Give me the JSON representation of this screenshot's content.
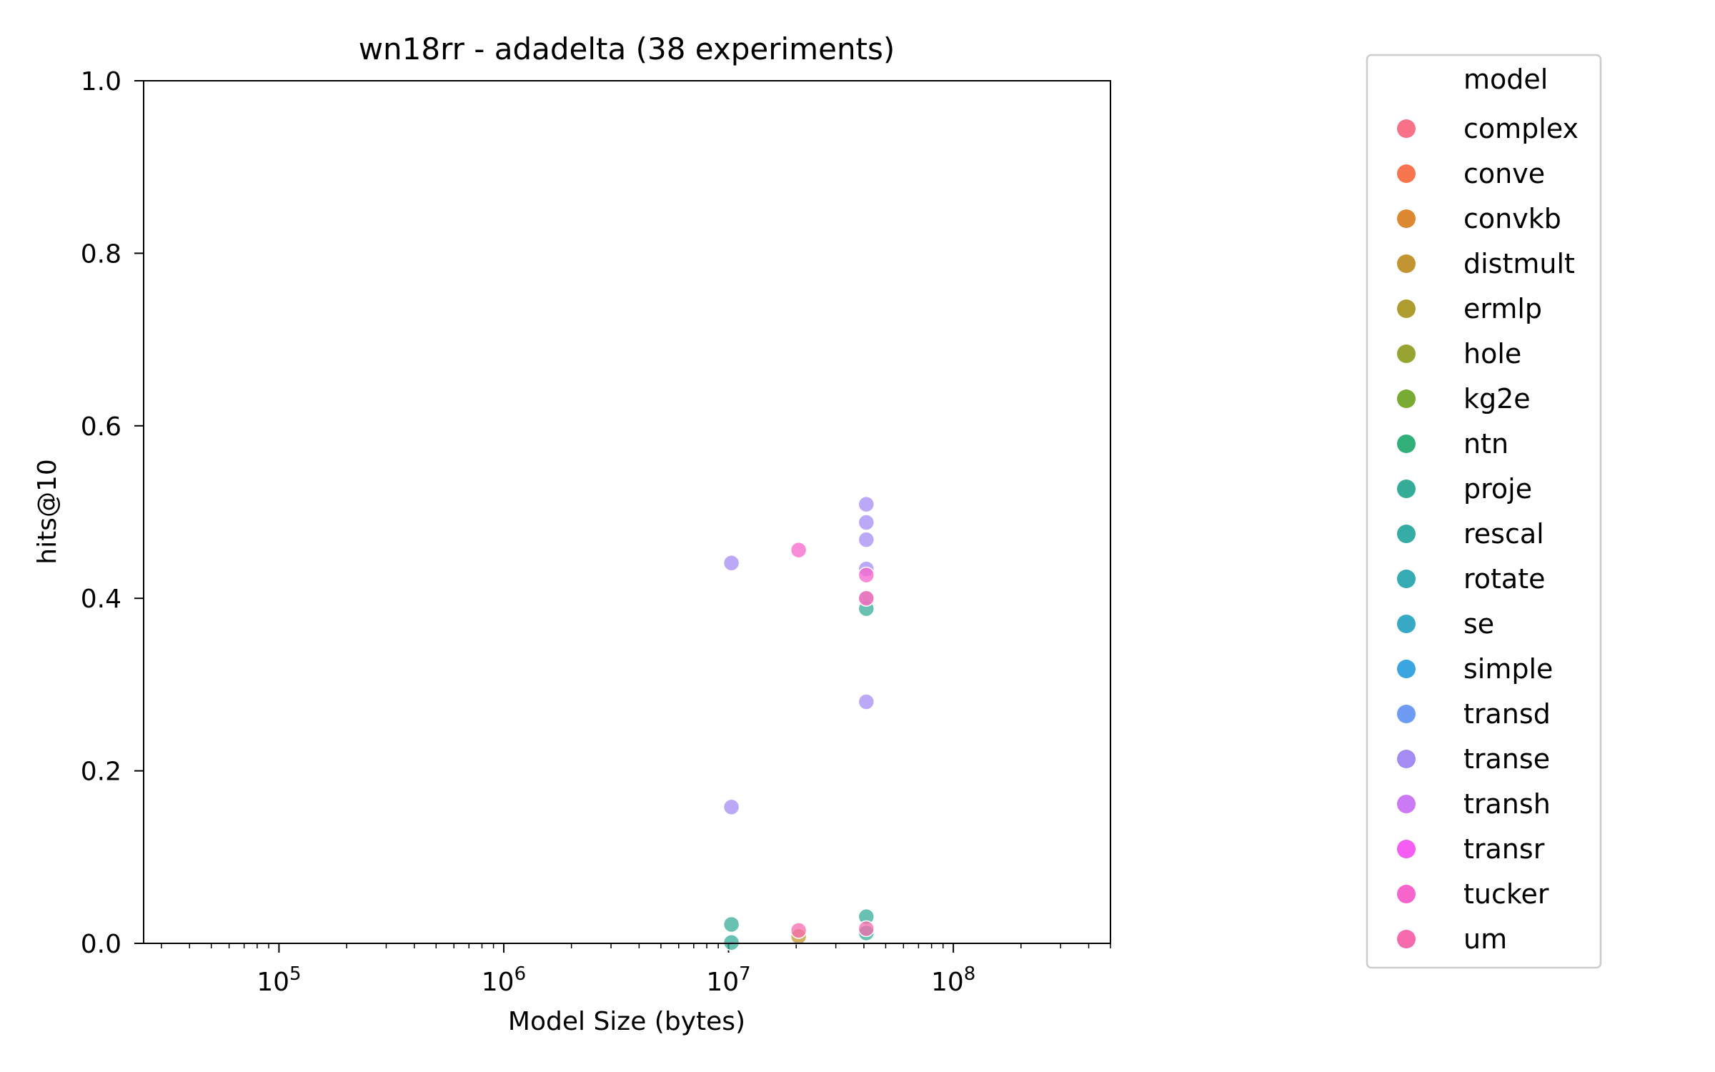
{
  "chart_data": {
    "type": "scatter",
    "title": "wn18rr - adadelta  (38 experiments)",
    "xlabel": "Model Size (bytes)",
    "ylabel": "hits@10",
    "xscale": "log",
    "xlim": [
      25000,
      500000000
    ],
    "ylim": [
      0.0,
      1.0
    ],
    "x_ticks": [
      {
        "value": 100000,
        "base": "10",
        "exp": "5"
      },
      {
        "value": 1000000,
        "base": "10",
        "exp": "6"
      },
      {
        "value": 10000000,
        "base": "10",
        "exp": "7"
      },
      {
        "value": 100000000,
        "base": "10",
        "exp": "8"
      }
    ],
    "y_ticks": [
      {
        "value": 0.0,
        "label": "0.0"
      },
      {
        "value": 0.2,
        "label": "0.2"
      },
      {
        "value": 0.4,
        "label": "0.4"
      },
      {
        "value": 0.6,
        "label": "0.6"
      },
      {
        "value": 0.8,
        "label": "0.8"
      },
      {
        "value": 1.0,
        "label": "1.0"
      }
    ],
    "grid": false,
    "legend_placement": "outside-right",
    "legend_title": "model",
    "series": [
      {
        "name": "complex",
        "color": "#f77189",
        "points": []
      },
      {
        "name": "conve",
        "color": "#f7754f",
        "points": []
      },
      {
        "name": "convkb",
        "color": "#dc8932",
        "points": []
      },
      {
        "name": "distmult",
        "color": "#c39532",
        "points": [
          {
            "x": 20500000,
            "y": 0.008
          }
        ]
      },
      {
        "name": "ermlp",
        "color": "#ae9d31",
        "points": []
      },
      {
        "name": "hole",
        "color": "#97a431",
        "points": []
      },
      {
        "name": "kg2e",
        "color": "#77ab31",
        "points": []
      },
      {
        "name": "ntn",
        "color": "#33b07a",
        "points": []
      },
      {
        "name": "proje",
        "color": "#35ac98",
        "points": [
          {
            "x": 10300000,
            "y": 0.022
          },
          {
            "x": 10300000,
            "y": 0.001
          },
          {
            "x": 41000000,
            "y": 0.388
          },
          {
            "x": 41000000,
            "y": 0.031
          },
          {
            "x": 41000000,
            "y": 0.012
          }
        ]
      },
      {
        "name": "rescal",
        "color": "#36ada4",
        "points": []
      },
      {
        "name": "rotate",
        "color": "#37abb4",
        "points": []
      },
      {
        "name": "se",
        "color": "#38a9c5",
        "points": []
      },
      {
        "name": "simple",
        "color": "#3aa5df",
        "points": []
      },
      {
        "name": "transd",
        "color": "#6e9bf4",
        "points": []
      },
      {
        "name": "transe",
        "color": "#a48cf4",
        "points": [
          {
            "x": 10300000,
            "y": 0.441
          },
          {
            "x": 10300000,
            "y": 0.158
          },
          {
            "x": 41000000,
            "y": 0.509
          },
          {
            "x": 41000000,
            "y": 0.488
          },
          {
            "x": 41000000,
            "y": 0.468
          },
          {
            "x": 41000000,
            "y": 0.434
          },
          {
            "x": 41000000,
            "y": 0.401
          },
          {
            "x": 41000000,
            "y": 0.28
          }
        ]
      },
      {
        "name": "transh",
        "color": "#cc7af4",
        "points": []
      },
      {
        "name": "transr",
        "color": "#f45cf2",
        "points": []
      },
      {
        "name": "tucker",
        "color": "#f565cc",
        "points": [
          {
            "x": 20500000,
            "y": 0.456
          },
          {
            "x": 41000000,
            "y": 0.427
          }
        ]
      },
      {
        "name": "um",
        "color": "#f66bad",
        "points": [
          {
            "x": 20500000,
            "y": 0.015
          },
          {
            "x": 41000000,
            "y": 0.4
          },
          {
            "x": 41000000,
            "y": 0.017
          }
        ]
      }
    ]
  }
}
